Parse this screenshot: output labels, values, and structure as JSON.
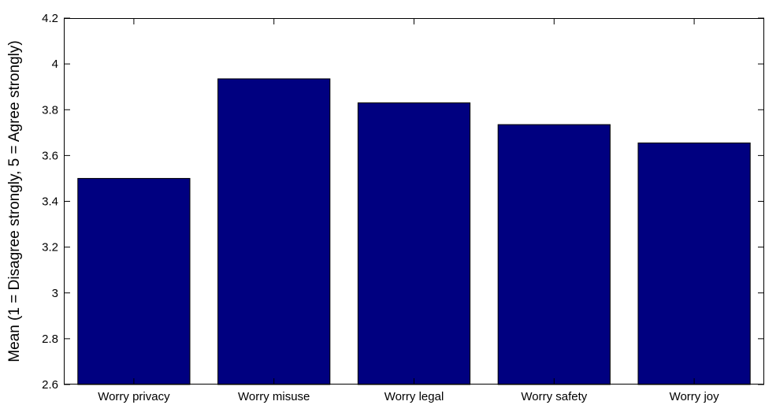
{
  "chart_data": {
    "type": "bar",
    "title": "",
    "xlabel": "",
    "ylabel": "Mean (1 = Disagree strongly, 5 = Agree strongly)",
    "categories": [
      "Worry privacy",
      "Worry misuse",
      "Worry legal",
      "Worry safety",
      "Worry joy"
    ],
    "values": [
      3.5,
      3.935,
      3.83,
      3.735,
      3.655
    ],
    "ylim": [
      2.6,
      4.2
    ],
    "yticks": [
      "2.6",
      "2.8",
      "3",
      "3.2",
      "3.4",
      "3.6",
      "3.8",
      "4",
      "4.2"
    ],
    "grid": false,
    "bar_color": "#000080"
  }
}
